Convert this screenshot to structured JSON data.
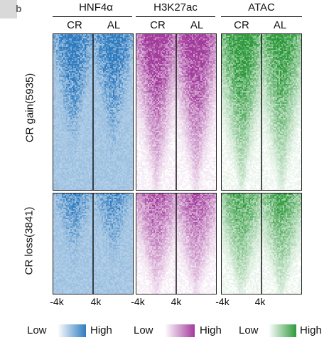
{
  "panel_label": "b",
  "marks": [
    {
      "name": "HNF4α",
      "columns": [
        "CR",
        "AL"
      ],
      "color": "#2f7bbf",
      "legend": {
        "low": "Low",
        "high": "High"
      }
    },
    {
      "name": "H3K27ac",
      "columns": [
        "CR",
        "AL"
      ],
      "color": "#a23b9c",
      "legend": {
        "low": "Low",
        "high": "High"
      }
    },
    {
      "name": "ATAC",
      "columns": [
        "CR",
        "AL"
      ],
      "color": "#2e9a3c",
      "legend": {
        "low": "Low",
        "high": "High"
      }
    }
  ],
  "row_groups": [
    {
      "label": "CR gain(5935)",
      "count": 5935
    },
    {
      "label": "CR loss(3841)",
      "count": 3841
    }
  ],
  "x_ticks": [
    "-4k",
    "4k"
  ],
  "chart_data": {
    "type": "heatmap",
    "marks": [
      "HNF4α",
      "H3K27ac",
      "ATAC"
    ],
    "conditions": [
      "CR",
      "AL"
    ],
    "row_groups": [
      {
        "label": "CR gain(5935)",
        "regions": 5935
      },
      {
        "label": "CR loss(3841)",
        "regions": 3841
      }
    ],
    "x_ticks": [
      "-4k",
      "4k"
    ],
    "color_scale": [
      {
        "mark": "HNF4α",
        "low": "#ffffff",
        "high": "#2f7bbf"
      },
      {
        "mark": "H3K27ac",
        "low": "#ffffff",
        "high": "#a23b9c"
      },
      {
        "mark": "ATAC",
        "low": "#ffffff",
        "high": "#2e9a3c"
      }
    ]
  }
}
